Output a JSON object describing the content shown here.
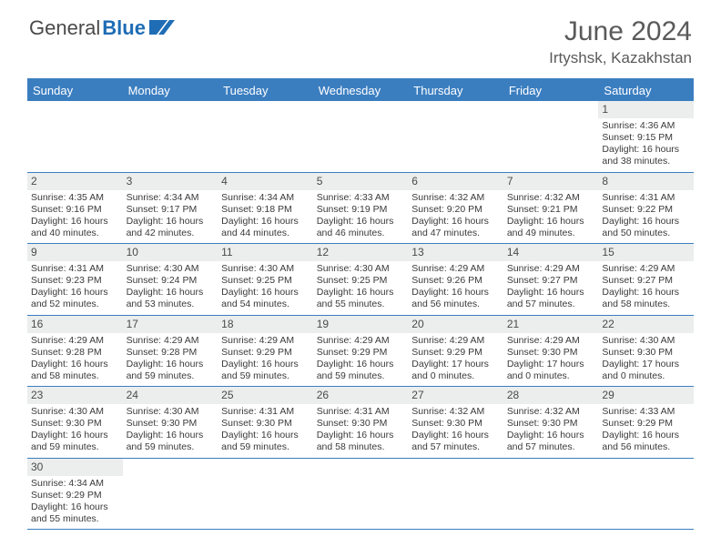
{
  "brand": {
    "part1": "General",
    "part2": "Blue"
  },
  "title": "June 2024",
  "location": "Irtyshsk, Kazakhstan",
  "colors": {
    "header_bg": "#3b7ec0",
    "header_text": "#ffffff",
    "daynum_bg": "#eceded",
    "text": "#3a3a3a"
  },
  "weekdays": [
    "Sunday",
    "Monday",
    "Tuesday",
    "Wednesday",
    "Thursday",
    "Friday",
    "Saturday"
  ],
  "weeks": [
    [
      null,
      null,
      null,
      null,
      null,
      null,
      {
        "n": "1",
        "sr": "Sunrise: 4:36 AM",
        "ss": "Sunset: 9:15 PM",
        "d1": "Daylight: 16 hours",
        "d2": "and 38 minutes."
      }
    ],
    [
      {
        "n": "2",
        "sr": "Sunrise: 4:35 AM",
        "ss": "Sunset: 9:16 PM",
        "d1": "Daylight: 16 hours",
        "d2": "and 40 minutes."
      },
      {
        "n": "3",
        "sr": "Sunrise: 4:34 AM",
        "ss": "Sunset: 9:17 PM",
        "d1": "Daylight: 16 hours",
        "d2": "and 42 minutes."
      },
      {
        "n": "4",
        "sr": "Sunrise: 4:34 AM",
        "ss": "Sunset: 9:18 PM",
        "d1": "Daylight: 16 hours",
        "d2": "and 44 minutes."
      },
      {
        "n": "5",
        "sr": "Sunrise: 4:33 AM",
        "ss": "Sunset: 9:19 PM",
        "d1": "Daylight: 16 hours",
        "d2": "and 46 minutes."
      },
      {
        "n": "6",
        "sr": "Sunrise: 4:32 AM",
        "ss": "Sunset: 9:20 PM",
        "d1": "Daylight: 16 hours",
        "d2": "and 47 minutes."
      },
      {
        "n": "7",
        "sr": "Sunrise: 4:32 AM",
        "ss": "Sunset: 9:21 PM",
        "d1": "Daylight: 16 hours",
        "d2": "and 49 minutes."
      },
      {
        "n": "8",
        "sr": "Sunrise: 4:31 AM",
        "ss": "Sunset: 9:22 PM",
        "d1": "Daylight: 16 hours",
        "d2": "and 50 minutes."
      }
    ],
    [
      {
        "n": "9",
        "sr": "Sunrise: 4:31 AM",
        "ss": "Sunset: 9:23 PM",
        "d1": "Daylight: 16 hours",
        "d2": "and 52 minutes."
      },
      {
        "n": "10",
        "sr": "Sunrise: 4:30 AM",
        "ss": "Sunset: 9:24 PM",
        "d1": "Daylight: 16 hours",
        "d2": "and 53 minutes."
      },
      {
        "n": "11",
        "sr": "Sunrise: 4:30 AM",
        "ss": "Sunset: 9:25 PM",
        "d1": "Daylight: 16 hours",
        "d2": "and 54 minutes."
      },
      {
        "n": "12",
        "sr": "Sunrise: 4:30 AM",
        "ss": "Sunset: 9:25 PM",
        "d1": "Daylight: 16 hours",
        "d2": "and 55 minutes."
      },
      {
        "n": "13",
        "sr": "Sunrise: 4:29 AM",
        "ss": "Sunset: 9:26 PM",
        "d1": "Daylight: 16 hours",
        "d2": "and 56 minutes."
      },
      {
        "n": "14",
        "sr": "Sunrise: 4:29 AM",
        "ss": "Sunset: 9:27 PM",
        "d1": "Daylight: 16 hours",
        "d2": "and 57 minutes."
      },
      {
        "n": "15",
        "sr": "Sunrise: 4:29 AM",
        "ss": "Sunset: 9:27 PM",
        "d1": "Daylight: 16 hours",
        "d2": "and 58 minutes."
      }
    ],
    [
      {
        "n": "16",
        "sr": "Sunrise: 4:29 AM",
        "ss": "Sunset: 9:28 PM",
        "d1": "Daylight: 16 hours",
        "d2": "and 58 minutes."
      },
      {
        "n": "17",
        "sr": "Sunrise: 4:29 AM",
        "ss": "Sunset: 9:28 PM",
        "d1": "Daylight: 16 hours",
        "d2": "and 59 minutes."
      },
      {
        "n": "18",
        "sr": "Sunrise: 4:29 AM",
        "ss": "Sunset: 9:29 PM",
        "d1": "Daylight: 16 hours",
        "d2": "and 59 minutes."
      },
      {
        "n": "19",
        "sr": "Sunrise: 4:29 AM",
        "ss": "Sunset: 9:29 PM",
        "d1": "Daylight: 16 hours",
        "d2": "and 59 minutes."
      },
      {
        "n": "20",
        "sr": "Sunrise: 4:29 AM",
        "ss": "Sunset: 9:29 PM",
        "d1": "Daylight: 17 hours",
        "d2": "and 0 minutes."
      },
      {
        "n": "21",
        "sr": "Sunrise: 4:29 AM",
        "ss": "Sunset: 9:30 PM",
        "d1": "Daylight: 17 hours",
        "d2": "and 0 minutes."
      },
      {
        "n": "22",
        "sr": "Sunrise: 4:30 AM",
        "ss": "Sunset: 9:30 PM",
        "d1": "Daylight: 17 hours",
        "d2": "and 0 minutes."
      }
    ],
    [
      {
        "n": "23",
        "sr": "Sunrise: 4:30 AM",
        "ss": "Sunset: 9:30 PM",
        "d1": "Daylight: 16 hours",
        "d2": "and 59 minutes."
      },
      {
        "n": "24",
        "sr": "Sunrise: 4:30 AM",
        "ss": "Sunset: 9:30 PM",
        "d1": "Daylight: 16 hours",
        "d2": "and 59 minutes."
      },
      {
        "n": "25",
        "sr": "Sunrise: 4:31 AM",
        "ss": "Sunset: 9:30 PM",
        "d1": "Daylight: 16 hours",
        "d2": "and 59 minutes."
      },
      {
        "n": "26",
        "sr": "Sunrise: 4:31 AM",
        "ss": "Sunset: 9:30 PM",
        "d1": "Daylight: 16 hours",
        "d2": "and 58 minutes."
      },
      {
        "n": "27",
        "sr": "Sunrise: 4:32 AM",
        "ss": "Sunset: 9:30 PM",
        "d1": "Daylight: 16 hours",
        "d2": "and 57 minutes."
      },
      {
        "n": "28",
        "sr": "Sunrise: 4:32 AM",
        "ss": "Sunset: 9:30 PM",
        "d1": "Daylight: 16 hours",
        "d2": "and 57 minutes."
      },
      {
        "n": "29",
        "sr": "Sunrise: 4:33 AM",
        "ss": "Sunset: 9:29 PM",
        "d1": "Daylight: 16 hours",
        "d2": "and 56 minutes."
      }
    ],
    [
      {
        "n": "30",
        "sr": "Sunrise: 4:34 AM",
        "ss": "Sunset: 9:29 PM",
        "d1": "Daylight: 16 hours",
        "d2": "and 55 minutes."
      },
      null,
      null,
      null,
      null,
      null,
      null
    ]
  ]
}
